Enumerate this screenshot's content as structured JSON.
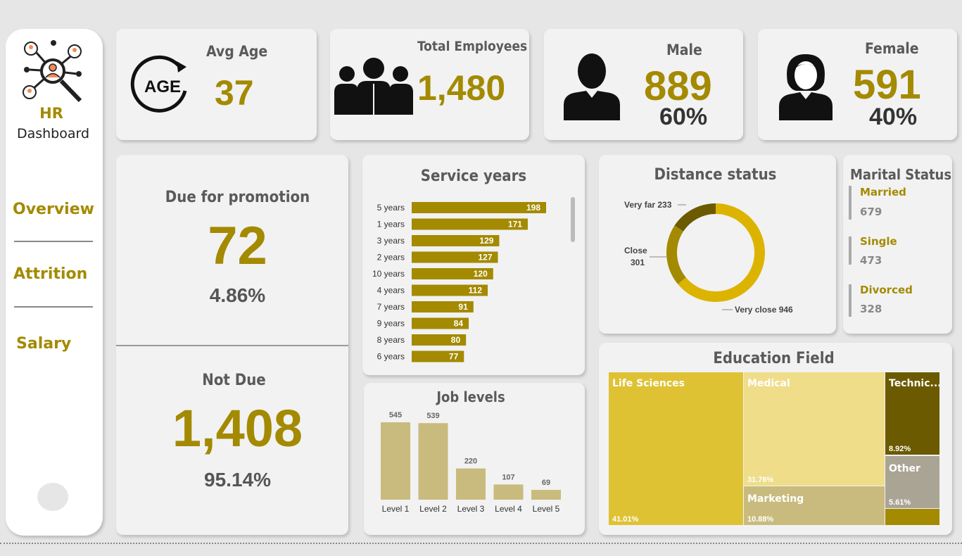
{
  "sidebar": {
    "title": "HR",
    "subtitle": "Dashboard",
    "nav": [
      {
        "label": "Overview"
      },
      {
        "label": "Attrition"
      },
      {
        "label": "Salary"
      }
    ]
  },
  "kpis": {
    "avg_age": {
      "label": "Avg Age",
      "icon_text": "AGE",
      "value": "37"
    },
    "total": {
      "label": "Total Employees",
      "value": "1,480"
    },
    "male": {
      "label": "Male",
      "value": "889",
      "pct": "60%"
    },
    "female": {
      "label": "Female",
      "value": "591",
      "pct": "40%"
    }
  },
  "promotion": {
    "due_label": "Due for promotion",
    "due_value": "72",
    "due_pct": "4.86%",
    "notdue_label": "Not Due",
    "notdue_value": "1,408",
    "notdue_pct": "95.14%"
  },
  "service_years": {
    "title": "Service years",
    "chart_data": {
      "type": "bar",
      "orientation": "horizontal",
      "categories": [
        "5 years",
        "1 years",
        "3 years",
        "2 years",
        "10 years",
        "4 years",
        "7 years",
        "9 years",
        "8 years",
        "6 years"
      ],
      "values": [
        198,
        171,
        129,
        127,
        120,
        112,
        91,
        84,
        80,
        77
      ],
      "color": "#a38a00"
    }
  },
  "job_levels": {
    "title": "Job levels",
    "chart_data": {
      "type": "bar",
      "categories": [
        "Level 1",
        "Level 2",
        "Level 3",
        "Level 4",
        "Level 5"
      ],
      "values": [
        545,
        539,
        220,
        107,
        69
      ],
      "color": "#c9bb7d"
    }
  },
  "distance": {
    "title": "Distance status",
    "chart_data": {
      "type": "pie",
      "donut": true,
      "slices": [
        {
          "label": "Very close",
          "value": 946,
          "color": "#dcb400"
        },
        {
          "label": "Close",
          "value": 301,
          "color": "#a38a00"
        },
        {
          "label": "Very far",
          "value": 233,
          "color": "#6b5a00"
        }
      ]
    },
    "labels": {
      "very_far": "Very far 233",
      "close": "Close",
      "close_val": "301",
      "very_close": "Very close 946"
    }
  },
  "marital": {
    "title": "Marital Status",
    "items": [
      {
        "label": "Married",
        "value": "679"
      },
      {
        "label": "Single",
        "value": "473"
      },
      {
        "label": "Divorced",
        "value": "328"
      }
    ]
  },
  "education": {
    "title": "Education Field",
    "chart_data": {
      "type": "treemap",
      "items": [
        {
          "label": "Life Sciences",
          "pct": "41.01%",
          "color": "#dfc234"
        },
        {
          "label": "Medical",
          "pct": "31.76%",
          "color": "#efdd8a"
        },
        {
          "label": "Marketing",
          "pct": "10.88%",
          "color": "#c9bb7d"
        },
        {
          "label": "Technic...",
          "pct": "8.92%",
          "color": "#6b5a00"
        },
        {
          "label": "Other",
          "pct": "5.61%",
          "color": "#aaa494"
        },
        {
          "label": "",
          "pct": "",
          "color": "#a38a00"
        }
      ]
    }
  }
}
